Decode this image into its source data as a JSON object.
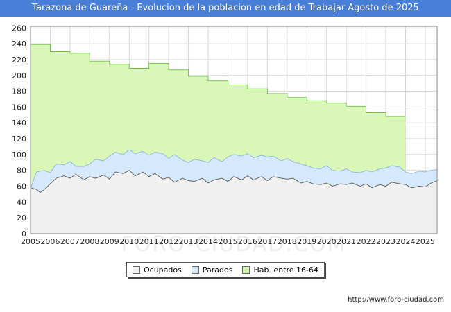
{
  "title": "Tarazona de Guareña - Evolucion de la poblacion en edad de Trabajar Agosto de 2025",
  "footer_url": "http://www.foro-ciudad.com",
  "watermark": "FORO-CIUDAD.COM",
  "legend": [
    {
      "label": "Ocupados",
      "color": "#f0f0f0"
    },
    {
      "label": "Parados",
      "color": "#d6e8fb"
    },
    {
      "label": "Hab. entre 16-64",
      "color": "#d9f8b8"
    }
  ],
  "chart_data": {
    "type": "area",
    "x_ticks": [
      "2005",
      "2006",
      "2007",
      "2008",
      "2009",
      "2010",
      "2011",
      "2012",
      "2013",
      "2014",
      "2015",
      "2016",
      "2017",
      "2018",
      "2019",
      "2020",
      "2021",
      "2022",
      "2023",
      "2024",
      "2025"
    ],
    "y_ticks": [
      0,
      20,
      40,
      60,
      80,
      100,
      120,
      140,
      160,
      180,
      200,
      220,
      240,
      260
    ],
    "xlim": [
      2005,
      2025.6
    ],
    "ylim": [
      0,
      262
    ],
    "grid": true,
    "legend_position": "bottom",
    "series": [
      {
        "name": "Hab. entre 16-64",
        "step": true,
        "color": "#d9f8b8",
        "line_color": "#6abf40",
        "points": [
          [
            2005,
            239
          ],
          [
            2006,
            230
          ],
          [
            2007,
            228
          ],
          [
            2008,
            218
          ],
          [
            2009,
            214
          ],
          [
            2010,
            209
          ],
          [
            2011,
            215
          ],
          [
            2012,
            207
          ],
          [
            2013,
            199
          ],
          [
            2014,
            193
          ],
          [
            2015,
            188
          ],
          [
            2016,
            183
          ],
          [
            2017,
            177
          ],
          [
            2018,
            172
          ],
          [
            2019,
            168
          ],
          [
            2020,
            165
          ],
          [
            2021,
            161
          ],
          [
            2022,
            153
          ],
          [
            2023,
            148
          ],
          [
            2024.0,
            148
          ]
        ]
      },
      {
        "name": "Parados",
        "color": "#d6e8fb",
        "line_color": "#8ab4e0",
        "points": [
          [
            2005.0,
            57
          ],
          [
            2005.3,
            78
          ],
          [
            2005.7,
            80
          ],
          [
            2006.0,
            77
          ],
          [
            2006.3,
            88
          ],
          [
            2006.7,
            87
          ],
          [
            2007.0,
            91
          ],
          [
            2007.3,
            85
          ],
          [
            2007.7,
            85
          ],
          [
            2008.0,
            88
          ],
          [
            2008.3,
            94
          ],
          [
            2008.7,
            92
          ],
          [
            2009.0,
            98
          ],
          [
            2009.3,
            103
          ],
          [
            2009.7,
            100
          ],
          [
            2010.0,
            106
          ],
          [
            2010.3,
            101
          ],
          [
            2010.7,
            104
          ],
          [
            2011.0,
            99
          ],
          [
            2011.3,
            103
          ],
          [
            2011.7,
            101
          ],
          [
            2012.0,
            95
          ],
          [
            2012.3,
            100
          ],
          [
            2012.7,
            93
          ],
          [
            2013.0,
            90
          ],
          [
            2013.3,
            94
          ],
          [
            2013.7,
            92
          ],
          [
            2014.0,
            90
          ],
          [
            2014.3,
            96
          ],
          [
            2014.7,
            91
          ],
          [
            2015.0,
            97
          ],
          [
            2015.3,
            100
          ],
          [
            2015.7,
            98
          ],
          [
            2016.0,
            101
          ],
          [
            2016.3,
            96
          ],
          [
            2016.7,
            99
          ],
          [
            2017.0,
            97
          ],
          [
            2017.3,
            98
          ],
          [
            2017.7,
            92
          ],
          [
            2018.0,
            95
          ],
          [
            2018.3,
            91
          ],
          [
            2018.7,
            88
          ],
          [
            2019.0,
            86
          ],
          [
            2019.3,
            83
          ],
          [
            2019.7,
            82
          ],
          [
            2020.0,
            86
          ],
          [
            2020.3,
            80
          ],
          [
            2020.7,
            79
          ],
          [
            2021.0,
            82
          ],
          [
            2021.3,
            78
          ],
          [
            2021.7,
            77
          ],
          [
            2022.0,
            80
          ],
          [
            2022.3,
            78
          ],
          [
            2022.7,
            82
          ],
          [
            2023.0,
            83
          ],
          [
            2023.3,
            86
          ],
          [
            2023.7,
            84
          ],
          [
            2024.0,
            78
          ],
          [
            2024.3,
            76
          ],
          [
            2024.7,
            79
          ],
          [
            2025.0,
            78
          ],
          [
            2025.3,
            80
          ],
          [
            2025.6,
            81
          ]
        ]
      },
      {
        "name": "Ocupados",
        "color": "#f0f0f0",
        "line_color": "#555555",
        "points": [
          [
            2005.0,
            58
          ],
          [
            2005.3,
            56
          ],
          [
            2005.5,
            52
          ],
          [
            2005.8,
            58
          ],
          [
            2006.0,
            63
          ],
          [
            2006.3,
            70
          ],
          [
            2006.7,
            73
          ],
          [
            2007.0,
            70
          ],
          [
            2007.3,
            75
          ],
          [
            2007.7,
            68
          ],
          [
            2008.0,
            72
          ],
          [
            2008.3,
            70
          ],
          [
            2008.7,
            74
          ],
          [
            2009.0,
            69
          ],
          [
            2009.3,
            78
          ],
          [
            2009.7,
            76
          ],
          [
            2010.0,
            80
          ],
          [
            2010.3,
            73
          ],
          [
            2010.7,
            78
          ],
          [
            2011.0,
            72
          ],
          [
            2011.3,
            76
          ],
          [
            2011.7,
            69
          ],
          [
            2012.0,
            71
          ],
          [
            2012.3,
            65
          ],
          [
            2012.7,
            70
          ],
          [
            2013.0,
            67
          ],
          [
            2013.3,
            66
          ],
          [
            2013.7,
            70
          ],
          [
            2014.0,
            64
          ],
          [
            2014.3,
            68
          ],
          [
            2014.7,
            70
          ],
          [
            2015.0,
            66
          ],
          [
            2015.3,
            72
          ],
          [
            2015.7,
            68
          ],
          [
            2016.0,
            73
          ],
          [
            2016.3,
            68
          ],
          [
            2016.7,
            72
          ],
          [
            2017.0,
            67
          ],
          [
            2017.3,
            72
          ],
          [
            2017.7,
            70
          ],
          [
            2018.0,
            69
          ],
          [
            2018.3,
            70
          ],
          [
            2018.7,
            64
          ],
          [
            2019.0,
            66
          ],
          [
            2019.3,
            63
          ],
          [
            2019.7,
            62
          ],
          [
            2020.0,
            64
          ],
          [
            2020.3,
            60
          ],
          [
            2020.7,
            63
          ],
          [
            2021.0,
            62
          ],
          [
            2021.3,
            64
          ],
          [
            2021.7,
            60
          ],
          [
            2022.0,
            63
          ],
          [
            2022.3,
            58
          ],
          [
            2022.7,
            62
          ],
          [
            2023.0,
            60
          ],
          [
            2023.3,
            65
          ],
          [
            2023.7,
            63
          ],
          [
            2024.0,
            62
          ],
          [
            2024.3,
            58
          ],
          [
            2024.7,
            60
          ],
          [
            2025.0,
            59
          ],
          [
            2025.3,
            64
          ],
          [
            2025.6,
            67
          ]
        ]
      }
    ]
  }
}
